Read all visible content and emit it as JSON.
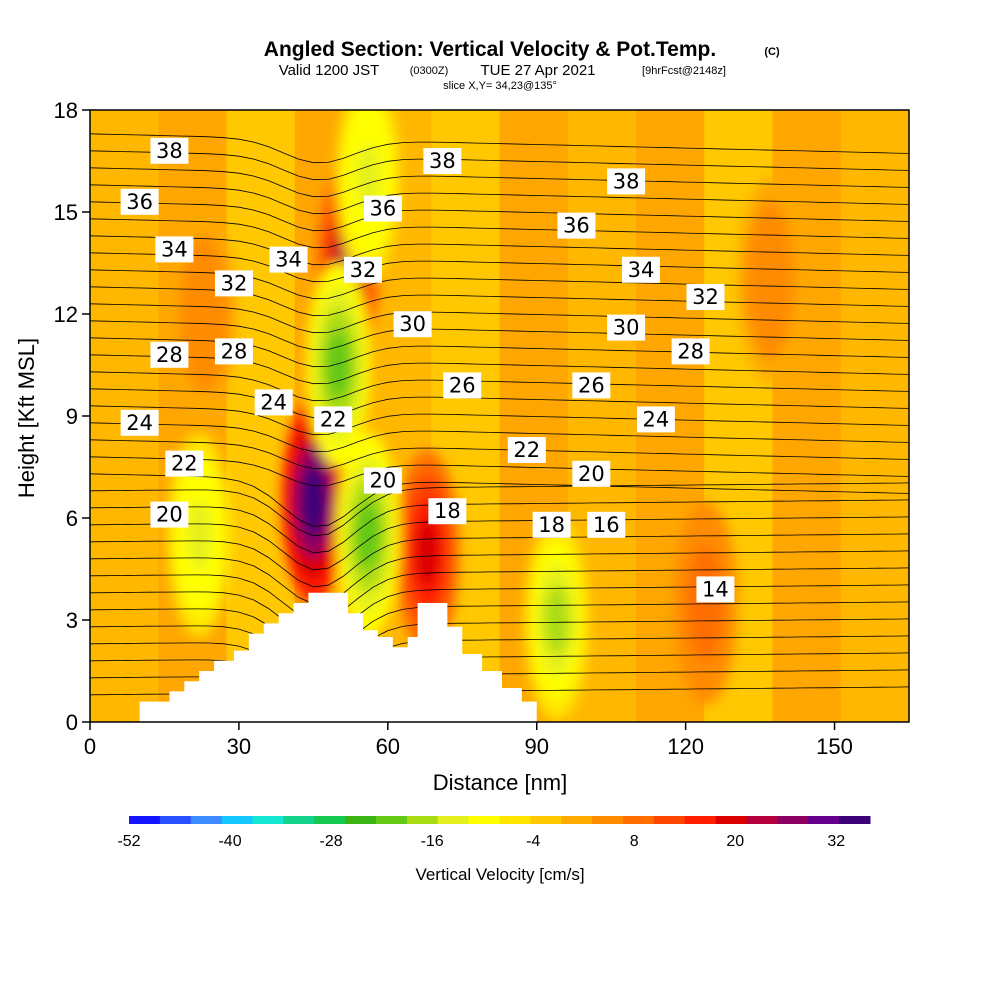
{
  "header": {
    "title": "Angled Section: Vertical Velocity & Pot.Temp.",
    "title_suffix": "(C)",
    "valid_prefix": "Valid 1200 JST",
    "valid_utc": "(0300Z)",
    "valid_date": "TUE 27 Apr 2021",
    "forecast_info": "[9hrFcst@2148z]",
    "slice": "slice X,Y= 34,23@135°"
  },
  "chart_data": {
    "type": "heatmap",
    "xlabel": "Distance [nm]",
    "ylabel": "Height [Kft MSL]",
    "xlim": [
      0,
      165
    ],
    "ylim": [
      0,
      18
    ],
    "xticks": [
      0,
      30,
      60,
      90,
      120,
      150
    ],
    "yticks": [
      0,
      3,
      6,
      9,
      12,
      15,
      18
    ],
    "terrain_profile": [
      [
        10,
        0.6
      ],
      [
        13,
        0.6
      ],
      [
        16,
        0.9
      ],
      [
        19,
        1.2
      ],
      [
        22,
        1.5
      ],
      [
        25,
        1.8
      ],
      [
        29,
        2.1
      ],
      [
        32,
        2.6
      ],
      [
        35,
        2.9
      ],
      [
        38,
        3.2
      ],
      [
        41,
        3.5
      ],
      [
        44,
        3.8
      ],
      [
        48,
        3.8
      ],
      [
        52,
        3.2
      ],
      [
        55,
        2.7
      ],
      [
        58,
        2.5
      ],
      [
        61,
        2.2
      ],
      [
        64,
        2.5
      ],
      [
        66,
        3.5
      ],
      [
        70,
        3.5
      ],
      [
        72,
        2.8
      ],
      [
        75,
        2.0
      ],
      [
        79,
        1.5
      ],
      [
        83,
        1.0
      ],
      [
        87,
        0.6
      ],
      [
        90,
        0.3
      ]
    ],
    "velocity_features": [
      {
        "x": 45,
        "y": 6.5,
        "w": 34
      },
      {
        "x": 52,
        "y": 13.5,
        "w": 22
      },
      {
        "x": 68,
        "y": 5.0,
        "w": 20
      },
      {
        "x": 50,
        "y": 10.5,
        "w": -22
      },
      {
        "x": 56,
        "y": 5.5,
        "w": -20
      },
      {
        "x": 22,
        "y": 5.5,
        "w": -14
      },
      {
        "x": 56,
        "y": 16,
        "w": -14
      },
      {
        "x": 94,
        "y": 3.0,
        "w": -16
      },
      {
        "x": 124,
        "y": 3.5,
        "w": 10
      },
      {
        "x": 137,
        "y": 13,
        "w": 6
      },
      {
        "x": 23,
        "y": 12,
        "w": 6
      }
    ],
    "theta_labels": [
      {
        "text": "38",
        "x": 16,
        "y": 16.8
      },
      {
        "text": "38",
        "x": 71,
        "y": 16.5
      },
      {
        "text": "38",
        "x": 108,
        "y": 15.9
      },
      {
        "text": "36",
        "x": 10,
        "y": 15.3
      },
      {
        "text": "36",
        "x": 59,
        "y": 15.1
      },
      {
        "text": "36",
        "x": 98,
        "y": 14.6
      },
      {
        "text": "34",
        "x": 17,
        "y": 13.9
      },
      {
        "text": "34",
        "x": 40,
        "y": 13.6
      },
      {
        "text": "34",
        "x": 111,
        "y": 13.3
      },
      {
        "text": "32",
        "x": 29,
        "y": 12.9
      },
      {
        "text": "32",
        "x": 55,
        "y": 13.3
      },
      {
        "text": "32",
        "x": 124,
        "y": 12.5
      },
      {
        "text": "30",
        "x": 65,
        "y": 11.7
      },
      {
        "text": "30",
        "x": 108,
        "y": 11.6
      },
      {
        "text": "28",
        "x": 16,
        "y": 10.8
      },
      {
        "text": "28",
        "x": 29,
        "y": 10.9
      },
      {
        "text": "28",
        "x": 121,
        "y": 10.9
      },
      {
        "text": "26",
        "x": 75,
        "y": 9.9
      },
      {
        "text": "26",
        "x": 101,
        "y": 9.9
      },
      {
        "text": "24",
        "x": 10,
        "y": 8.8
      },
      {
        "text": "24",
        "x": 37,
        "y": 9.4
      },
      {
        "text": "24",
        "x": 114,
        "y": 8.9
      },
      {
        "text": "22",
        "x": 19,
        "y": 7.6
      },
      {
        "text": "22",
        "x": 49,
        "y": 8.9
      },
      {
        "text": "22",
        "x": 88,
        "y": 8.0
      },
      {
        "text": "20",
        "x": 16,
        "y": 6.1
      },
      {
        "text": "20",
        "x": 59,
        "y": 7.1
      },
      {
        "text": "20",
        "x": 101,
        "y": 7.3
      },
      {
        "text": "18",
        "x": 72,
        "y": 6.2
      },
      {
        "text": "18",
        "x": 93,
        "y": 5.8
      },
      {
        "text": "16",
        "x": 104,
        "y": 5.8
      },
      {
        "text": "14",
        "x": 126,
        "y": 3.9
      }
    ]
  },
  "colorbar": {
    "label": "Vertical Velocity [cm/s]",
    "min": -52,
    "max": 36,
    "ticks": [
      -52,
      -40,
      -28,
      -16,
      -4,
      8,
      20,
      32
    ],
    "colors": [
      "#1414ff",
      "#2850ff",
      "#3c8cff",
      "#14c8ff",
      "#14e6d2",
      "#14d28c",
      "#14c850",
      "#3cb414",
      "#64c814",
      "#aadc14",
      "#e6f01e",
      "#ffff00",
      "#ffe600",
      "#ffc800",
      "#ffaa00",
      "#ff8c00",
      "#ff6e00",
      "#ff4600",
      "#ff1e00",
      "#dc0000",
      "#b4003c",
      "#8c0064",
      "#64008c",
      "#3c0078"
    ]
  }
}
